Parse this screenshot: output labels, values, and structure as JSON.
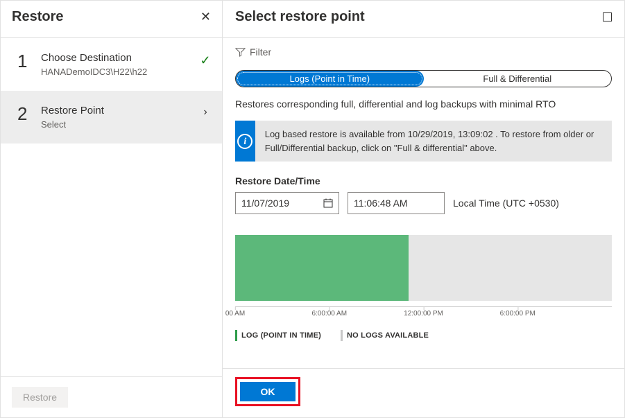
{
  "left": {
    "title": "Restore",
    "steps": [
      {
        "num": "1",
        "title": "Choose Destination",
        "sub": "HANADemoIDC3\\H22\\h22",
        "done": true
      },
      {
        "num": "2",
        "title": "Restore Point",
        "sub": "Select",
        "active": true
      }
    ],
    "footer_button": "Restore"
  },
  "right": {
    "title": "Select restore point",
    "filter_label": "Filter",
    "tabs": {
      "logs": "Logs (Point in Time)",
      "full": "Full & Differential"
    },
    "description": "Restores corresponding full, differential and log backups with minimal RTO",
    "info_text": "Log based restore is available from 10/29/2019, 13:09:02 . To restore from older or Full/Differential backup, click on \"Full & differential\" above.",
    "datetime_label": "Restore Date/Time",
    "date_value": "11/07/2019",
    "time_value": "11:06:48 AM",
    "timezone": "Local Time (UTC +0530)",
    "timeline": {
      "green_pct": 46,
      "grey_pct": 54,
      "ticks": [
        {
          "pos": 0,
          "label": "00 AM"
        },
        {
          "pos": 25,
          "label": "6:00:00 AM"
        },
        {
          "pos": 50,
          "label": "12:00:00 PM"
        },
        {
          "pos": 75,
          "label": "6:00:00 PM"
        }
      ],
      "legend": {
        "green": "LOG (POINT IN TIME)",
        "grey": "NO LOGS AVAILABLE"
      }
    },
    "ok_label": "OK"
  },
  "colors": {
    "primary": "#0078d4",
    "green_bar": "#5cb87a",
    "grey_bar": "#e6e6e6",
    "ok_highlight": "#e81123",
    "check": "#107c10"
  }
}
